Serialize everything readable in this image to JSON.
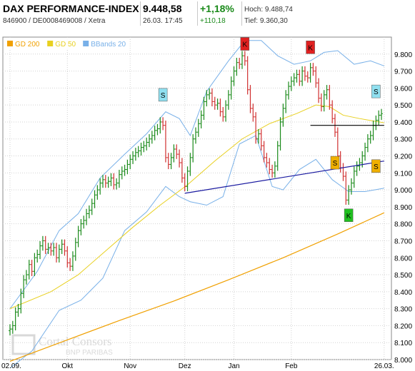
{
  "header": {
    "title": "DAX PERFORMANCE-INDEX",
    "isin": "846900 / DE0008469008 / Xetra",
    "price": "9.448,58",
    "timestamp": "26.03. 17:45",
    "change_pct": "+1,18%",
    "change_abs": "+110,18",
    "high": "Hoch: 9.488,74",
    "low": "Tief: 9.360,30"
  },
  "legend": [
    {
      "label": "GD 200",
      "color": "#f0a000"
    },
    {
      "label": "GD 50",
      "color": "#e8d020"
    },
    {
      "label": "BBands 20",
      "color": "#78b0e8"
    }
  ],
  "watermark": {
    "line1": "Cortal Consors",
    "line2": "BNP PARIBAS"
  },
  "chart_data": {
    "type": "line",
    "ylim": [
      8000,
      9900
    ],
    "y_ticks": [
      "9.800",
      "9.700",
      "9.600",
      "9.500",
      "9.400",
      "9.300",
      "9.200",
      "9.100",
      "9.000",
      "8.900",
      "8.800",
      "8.700",
      "8.600",
      "8.500",
      "8.400",
      "8.300",
      "8.200",
      "8.100",
      "8.000"
    ],
    "x_ticks": [
      {
        "label": "02.09.",
        "idx": 0
      },
      {
        "label": "Okt",
        "idx": 21
      },
      {
        "label": "Nov",
        "idx": 44
      },
      {
        "label": "Dez",
        "idx": 64
      },
      {
        "label": "Jan",
        "idx": 82
      },
      {
        "label": "Feb",
        "idx": 103
      },
      {
        "label": "26.03.",
        "idx": 137
      }
    ],
    "close": [
      8180,
      8200,
      8280,
      8300,
      8390,
      8470,
      8500,
      8560,
      8520,
      8600,
      8620,
      8670,
      8700,
      8650,
      8660,
      8640,
      8660,
      8600,
      8650,
      8680,
      8640,
      8570,
      8550,
      8610,
      8690,
      8760,
      8800,
      8820,
      8860,
      8880,
      8920,
      8970,
      9000,
      9040,
      9060,
      9040,
      9050,
      9070,
      9030,
      9040,
      9090,
      9110,
      9120,
      9150,
      9180,
      9200,
      9220,
      9230,
      9250,
      9260,
      9280,
      9300,
      9320,
      9350,
      9360,
      9400,
      9380,
      9190,
      9150,
      9190,
      9240,
      9210,
      9160,
      9070,
      9020,
      9110,
      9190,
      9300,
      9340,
      9390,
      9440,
      9520,
      9560,
      9570,
      9520,
      9500,
      9510,
      9460,
      9430,
      9500,
      9560,
      9640,
      9700,
      9750,
      9740,
      9790,
      9760,
      9590,
      9480,
      9430,
      9300,
      9330,
      9260,
      9190,
      9160,
      9120,
      9100,
      9140,
      9260,
      9400,
      9480,
      9560,
      9610,
      9640,
      9660,
      9680,
      9640,
      9700,
      9670,
      9660,
      9720,
      9700,
      9630,
      9540,
      9490,
      9560,
      9590,
      9500,
      9420,
      9340,
      9200,
      9130,
      9080,
      8940,
      9000,
      9040,
      9110,
      9140,
      9160,
      9200,
      9250,
      9300,
      9320,
      9380,
      9410,
      9440,
      9449
    ],
    "ma200_points": [
      [
        0,
        7990
      ],
      [
        20,
        8110
      ],
      [
        40,
        8230
      ],
      [
        60,
        8345
      ],
      [
        80,
        8470
      ],
      [
        100,
        8600
      ],
      [
        120,
        8740
      ],
      [
        137,
        8865
      ]
    ],
    "ma50_points": [
      [
        0,
        8300
      ],
      [
        15,
        8400
      ],
      [
        25,
        8500
      ],
      [
        35,
        8640
      ],
      [
        45,
        8780
      ],
      [
        55,
        8910
      ],
      [
        65,
        9030
      ],
      [
        75,
        9170
      ],
      [
        85,
        9300
      ],
      [
        95,
        9390
      ],
      [
        105,
        9450
      ],
      [
        112,
        9500
      ],
      [
        117,
        9490
      ],
      [
        122,
        9440
      ],
      [
        128,
        9420
      ],
      [
        137,
        9395
      ]
    ],
    "bb_upper_points": [
      [
        0,
        8300
      ],
      [
        10,
        8520
      ],
      [
        18,
        8760
      ],
      [
        25,
        8860
      ],
      [
        33,
        9070
      ],
      [
        42,
        9210
      ],
      [
        50,
        9330
      ],
      [
        57,
        9460
      ],
      [
        62,
        9420
      ],
      [
        66,
        9320
      ],
      [
        72,
        9580
      ],
      [
        80,
        9760
      ],
      [
        86,
        9880
      ],
      [
        92,
        9880
      ],
      [
        98,
        9790
      ],
      [
        104,
        9740
      ],
      [
        110,
        9760
      ],
      [
        115,
        9810
      ],
      [
        120,
        9820
      ],
      [
        126,
        9740
      ],
      [
        132,
        9760
      ],
      [
        137,
        9730
      ]
    ],
    "bb_lower_points": [
      [
        0,
        7950
      ],
      [
        8,
        8050
      ],
      [
        18,
        8290
      ],
      [
        26,
        8350
      ],
      [
        34,
        8480
      ],
      [
        42,
        8760
      ],
      [
        50,
        8870
      ],
      [
        57,
        9020
      ],
      [
        62,
        8960
      ],
      [
        66,
        8930
      ],
      [
        72,
        8910
      ],
      [
        78,
        8960
      ],
      [
        84,
        9270
      ],
      [
        90,
        9320
      ],
      [
        96,
        9020
      ],
      [
        100,
        9000
      ],
      [
        106,
        9120
      ],
      [
        112,
        9180
      ],
      [
        118,
        9060
      ],
      [
        124,
        8990
      ],
      [
        130,
        8990
      ],
      [
        137,
        9010
      ]
    ],
    "trendlines": [
      {
        "from": [
          64,
          8980
        ],
        "to": [
          137,
          9170
        ],
        "color": "#1a1aa0"
      },
      {
        "from": [
          110,
          9380
        ],
        "to": [
          137,
          9380
        ],
        "color": "#000000"
      }
    ],
    "signals": [
      {
        "type": "K",
        "idx": 86,
        "y": 9860,
        "color": "#e02020"
      },
      {
        "type": "K",
        "idx": 110,
        "y": 9840,
        "color": "#e02020"
      },
      {
        "type": "S",
        "idx": 56,
        "y": 9560,
        "color": "#90e0f0"
      },
      {
        "type": "S",
        "idx": 134,
        "y": 9580,
        "color": "#90e0f0"
      },
      {
        "type": "S",
        "idx": 119,
        "y": 9160,
        "color": "#f0b000"
      },
      {
        "type": "S",
        "idx": 134,
        "y": 9140,
        "color": "#f0b000"
      },
      {
        "type": "K",
        "idx": 124,
        "y": 8850,
        "color": "#20c020"
      }
    ]
  }
}
